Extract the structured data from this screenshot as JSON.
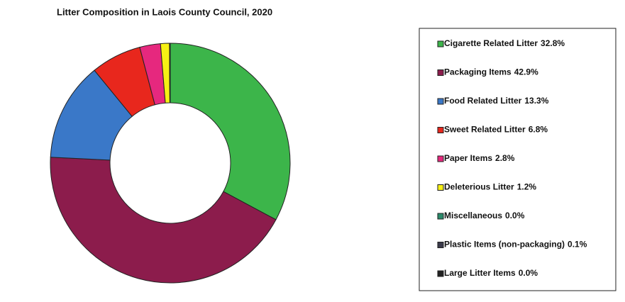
{
  "chart_data": {
    "type": "donut",
    "title": "Litter Composition in Laois County Council, 2020",
    "categories": [
      "Cigarette Related Litter",
      "Packaging Items",
      "Food Related Litter",
      "Sweet Related Litter",
      "Paper Items",
      "Deleterious Litter",
      "Miscellaneous",
      "Plastic Items (non-packaging)",
      "Large Litter Items"
    ],
    "values": [
      32.8,
      42.9,
      13.3,
      6.8,
      2.8,
      1.2,
      0.0,
      0.1,
      0.0
    ],
    "value_labels": [
      "32.8%",
      "42.9%",
      "13.3%",
      "6.8%",
      "2.8%",
      "1.2%",
      "0.0%",
      "0.1%",
      "0.0%"
    ],
    "colors": [
      "#3cb54a",
      "#8c1c4c",
      "#3a78c8",
      "#e8271d",
      "#e6287e",
      "#f6f014",
      "#2a8a6a",
      "#3a3a4a",
      "#222222"
    ],
    "legend": "right"
  }
}
